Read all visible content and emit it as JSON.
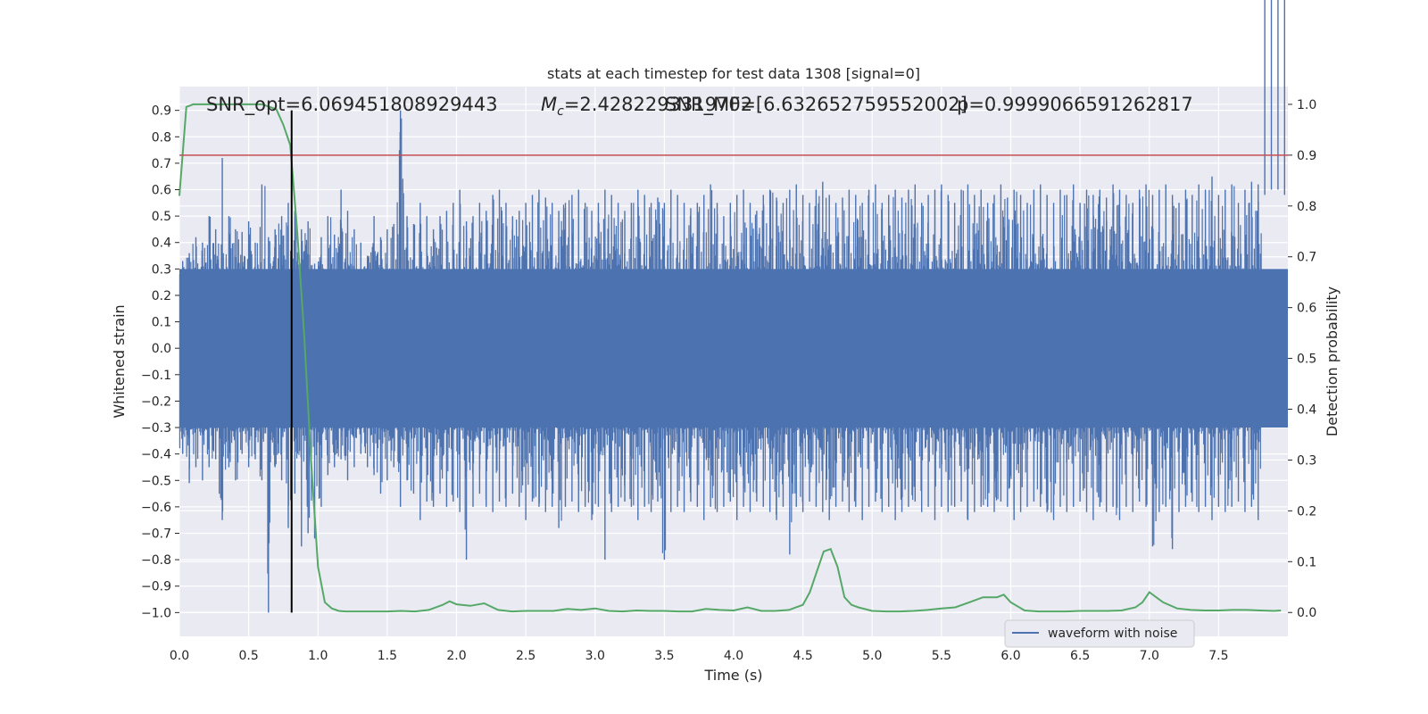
{
  "chart_data": {
    "type": "line",
    "title": "stats at each timestep for test data 1308 [signal=0]",
    "xlabel": "Time (s)",
    "ylabel": "Whitened strain",
    "y2label": "Detection probability",
    "xlim": [
      0,
      8.0
    ],
    "ylim": [
      -1.09,
      0.99
    ],
    "y2lim": [
      -0.047,
      1.035
    ],
    "xticks": [
      0.0,
      0.5,
      1.0,
      1.5,
      2.0,
      2.5,
      3.0,
      3.5,
      4.0,
      4.5,
      5.0,
      5.5,
      6.0,
      6.5,
      7.0,
      7.5
    ],
    "xtick_labels": [
      "0.0",
      "0.5",
      "1.0",
      "1.5",
      "2.0",
      "2.5",
      "3.0",
      "3.5",
      "4.0",
      "4.5",
      "5.0",
      "5.5",
      "6.0",
      "6.5",
      "7.0",
      "7.5"
    ],
    "yticks": [
      0.9,
      0.8,
      0.7,
      0.6,
      0.5,
      0.4,
      0.3,
      0.2,
      0.1,
      0.0,
      -0.1,
      -0.2,
      -0.3,
      -0.4,
      -0.5,
      -0.6,
      -0.7,
      -0.8,
      -0.9,
      -1.0
    ],
    "ytick_labels": [
      "0.9",
      "0.8",
      "0.7",
      "0.6",
      "0.5",
      "0.4",
      "0.3",
      "0.2",
      "0.1",
      "0.0",
      "−0.1",
      "−0.2",
      "−0.3",
      "−0.4",
      "−0.5",
      "−0.6",
      "−0.7",
      "−0.8",
      "−0.9",
      "−1.0"
    ],
    "y2ticks": [
      1.0,
      0.9,
      0.8,
      0.7,
      0.6,
      0.5,
      0.4,
      0.3,
      0.2,
      0.1,
      0.0
    ],
    "y2tick_labels": [
      "1.0",
      "0.9",
      "0.8",
      "0.7",
      "0.6",
      "0.5",
      "0.4",
      "0.3",
      "0.2",
      "0.1",
      "0.0"
    ],
    "grid": true,
    "legend": {
      "placement": "lower-right",
      "entries": [
        "waveform with noise"
      ]
    },
    "colors": {
      "background": "#eaeaf2",
      "grid": "#ffffff",
      "waveform": "#4c72b0",
      "probability": "#55a868",
      "threshold": "#c44e52",
      "marker": "#000000"
    },
    "annotations": {
      "snr_opt": "SNR_opt=6.069451808929443",
      "mc_sym": "M",
      "mc_sub": "c",
      "mc_val": "=2.4282293319702",
      "snr_mf": "SNR_MF=[6.632652759552002]",
      "p_val": "p=0.9999066591262817"
    },
    "threshold_probability": 0.9,
    "marker_time": 0.81,
    "waveform": {
      "description_note": "",
      "envelope_high": [
        0.33,
        0.36,
        0.42,
        0.4,
        0.5,
        0.45,
        0.72,
        0.5,
        0.45,
        0.44,
        0.48,
        0.4,
        0.62,
        0.42,
        0.45,
        0.5,
        0.55,
        0.52,
        0.45,
        0.48,
        0.32,
        0.42,
        0.5,
        0.43,
        0.6,
        0.52,
        0.45,
        0.4,
        0.35,
        0.5,
        0.42,
        0.45,
        0.47,
        0.9,
        0.5,
        0.47,
        0.55,
        0.5,
        0.45,
        0.5,
        0.52,
        0.55,
        0.6,
        0.48,
        0.5,
        0.55,
        0.52,
        0.58,
        0.6,
        0.55,
        0.5,
        0.52,
        0.55,
        0.58,
        0.6,
        0.57,
        0.55,
        0.52,
        0.55,
        0.58,
        0.6,
        0.55,
        0.52,
        0.55,
        0.6,
        0.58,
        0.55,
        0.52,
        0.55,
        0.6,
        0.58,
        0.55,
        0.57,
        0.55,
        0.6,
        0.58,
        0.55,
        0.53,
        0.55,
        0.58,
        0.62,
        0.55,
        0.5,
        0.55,
        0.58,
        0.6,
        0.55,
        0.52,
        0.58,
        0.6,
        0.57,
        0.55,
        0.6,
        0.62,
        0.58,
        0.55,
        0.6,
        0.63,
        0.58,
        0.55,
        0.57,
        0.6,
        0.58,
        0.55,
        0.6,
        0.62,
        0.55,
        0.58,
        0.6,
        0.57,
        0.6,
        0.62,
        0.55,
        0.58,
        0.6,
        0.62,
        0.58,
        0.55,
        0.6,
        0.62,
        0.58,
        0.6,
        0.55,
        0.58,
        0.62,
        0.57,
        0.6,
        0.58,
        0.55,
        0.6,
        0.62,
        0.58,
        0.55,
        0.6,
        0.58,
        0.62,
        0.55,
        0.6,
        0.58,
        0.6,
        0.57,
        0.62,
        0.6,
        0.58,
        0.55,
        0.6,
        0.62,
        0.58,
        0.6,
        0.62,
        0.58,
        0.55,
        0.6,
        0.58,
        0.62,
        0.6,
        0.65,
        0.58,
        0.6,
        0.62,
        0.55,
        0.6,
        0.63,
        0.62,
        0.58,
        0.6,
        0.6,
        0.58
      ],
      "envelope_low": [
        -0.4,
        -0.51,
        -0.45,
        -0.5,
        -0.45,
        -0.42,
        -0.65,
        -0.45,
        -0.5,
        -0.4,
        -0.45,
        -0.42,
        -0.5,
        -1.0,
        -0.45,
        -0.5,
        -0.68,
        -0.55,
        -0.75,
        -0.7,
        -0.72,
        -0.6,
        -0.48,
        -0.45,
        -0.42,
        -0.5,
        -0.45,
        -0.4,
        -0.45,
        -0.48,
        -0.55,
        -0.5,
        -0.45,
        -0.6,
        -0.5,
        -0.55,
        -0.65,
        -0.58,
        -0.6,
        -0.55,
        -0.6,
        -0.58,
        -0.62,
        -0.8,
        -0.6,
        -0.55,
        -0.6,
        -0.62,
        -0.58,
        -0.6,
        -0.55,
        -0.6,
        -0.65,
        -0.58,
        -0.6,
        -0.62,
        -0.6,
        -0.68,
        -0.6,
        -0.58,
        -0.62,
        -0.6,
        -0.65,
        -0.6,
        -0.8,
        -0.62,
        -0.6,
        -0.58,
        -0.6,
        -0.65,
        -0.6,
        -0.62,
        -0.58,
        -0.8,
        -0.62,
        -0.6,
        -0.62,
        -0.58,
        -0.6,
        -0.65,
        -0.6,
        -0.62,
        -0.6,
        -0.58,
        -0.65,
        -0.6,
        -0.62,
        -0.58,
        -0.6,
        -0.62,
        -0.65,
        -0.6,
        -0.78,
        -0.6,
        -0.62,
        -0.58,
        -0.6,
        -0.62,
        -0.65,
        -0.6,
        -0.58,
        -0.62,
        -0.6,
        -0.65,
        -0.6,
        -0.58,
        -0.62,
        -0.6,
        -0.65,
        -0.62,
        -0.6,
        -0.58,
        -0.62,
        -0.6,
        -0.65,
        -0.6,
        -0.62,
        -0.6,
        -0.58,
        -0.65,
        -0.62,
        -0.6,
        -0.6,
        -0.62,
        -0.58,
        -0.6,
        -0.65,
        -0.62,
        -0.6,
        -0.58,
        -0.6,
        -0.62,
        -0.65,
        -0.6,
        -0.62,
        -0.6,
        -0.58,
        -0.62,
        -0.65,
        -0.6,
        -0.62,
        -0.6,
        -0.65,
        -0.6,
        -0.62,
        -0.58,
        -0.6,
        -0.75,
        -0.62,
        -0.6,
        -0.76,
        -0.62,
        -0.6,
        -0.58,
        -0.62,
        -0.6,
        -0.65,
        -0.6,
        -0.62,
        -0.6,
        -0.58,
        -0.62,
        -0.6,
        -0.65
      ]
    },
    "probability": {
      "t": [
        0.0,
        0.05,
        0.1,
        0.2,
        0.3,
        0.4,
        0.5,
        0.6,
        0.7,
        0.75,
        0.8,
        0.85,
        0.9,
        0.95,
        1.0,
        1.05,
        1.1,
        1.15,
        1.2,
        1.3,
        1.4,
        1.5,
        1.6,
        1.7,
        1.8,
        1.9,
        1.95,
        2.0,
        2.1,
        2.2,
        2.3,
        2.4,
        2.5,
        2.6,
        2.7,
        2.8,
        2.9,
        3.0,
        3.1,
        3.2,
        3.3,
        3.4,
        3.5,
        3.6,
        3.7,
        3.8,
        3.9,
        4.0,
        4.1,
        4.2,
        4.3,
        4.4,
        4.5,
        4.55,
        4.6,
        4.65,
        4.7,
        4.75,
        4.8,
        4.85,
        4.9,
        5.0,
        5.1,
        5.2,
        5.3,
        5.4,
        5.5,
        5.6,
        5.7,
        5.8,
        5.9,
        5.95,
        6.0,
        6.1,
        6.2,
        6.3,
        6.4,
        6.5,
        6.6,
        6.7,
        6.8,
        6.9,
        6.95,
        7.0,
        7.05,
        7.1,
        7.2,
        7.3,
        7.4,
        7.5,
        7.6,
        7.7,
        7.8,
        7.9,
        7.95
      ],
      "p": [
        0.82,
        0.995,
        1.0,
        1.0,
        1.0,
        1.0,
        1.0,
        1.0,
        0.99,
        0.96,
        0.92,
        0.75,
        0.55,
        0.3,
        0.09,
        0.02,
        0.008,
        0.003,
        0.002,
        0.002,
        0.002,
        0.002,
        0.003,
        0.002,
        0.005,
        0.015,
        0.022,
        0.016,
        0.013,
        0.018,
        0.005,
        0.002,
        0.003,
        0.003,
        0.003,
        0.007,
        0.005,
        0.008,
        0.003,
        0.002,
        0.004,
        0.003,
        0.003,
        0.002,
        0.002,
        0.007,
        0.005,
        0.004,
        0.01,
        0.003,
        0.003,
        0.005,
        0.015,
        0.04,
        0.08,
        0.12,
        0.125,
        0.09,
        0.03,
        0.015,
        0.01,
        0.003,
        0.002,
        0.002,
        0.003,
        0.005,
        0.008,
        0.01,
        0.02,
        0.03,
        0.03,
        0.035,
        0.02,
        0.004,
        0.002,
        0.002,
        0.002,
        0.003,
        0.003,
        0.003,
        0.004,
        0.01,
        0.02,
        0.04,
        0.03,
        0.02,
        0.008,
        0.005,
        0.004,
        0.004,
        0.005,
        0.005,
        0.004,
        0.003,
        0.004
      ]
    }
  }
}
